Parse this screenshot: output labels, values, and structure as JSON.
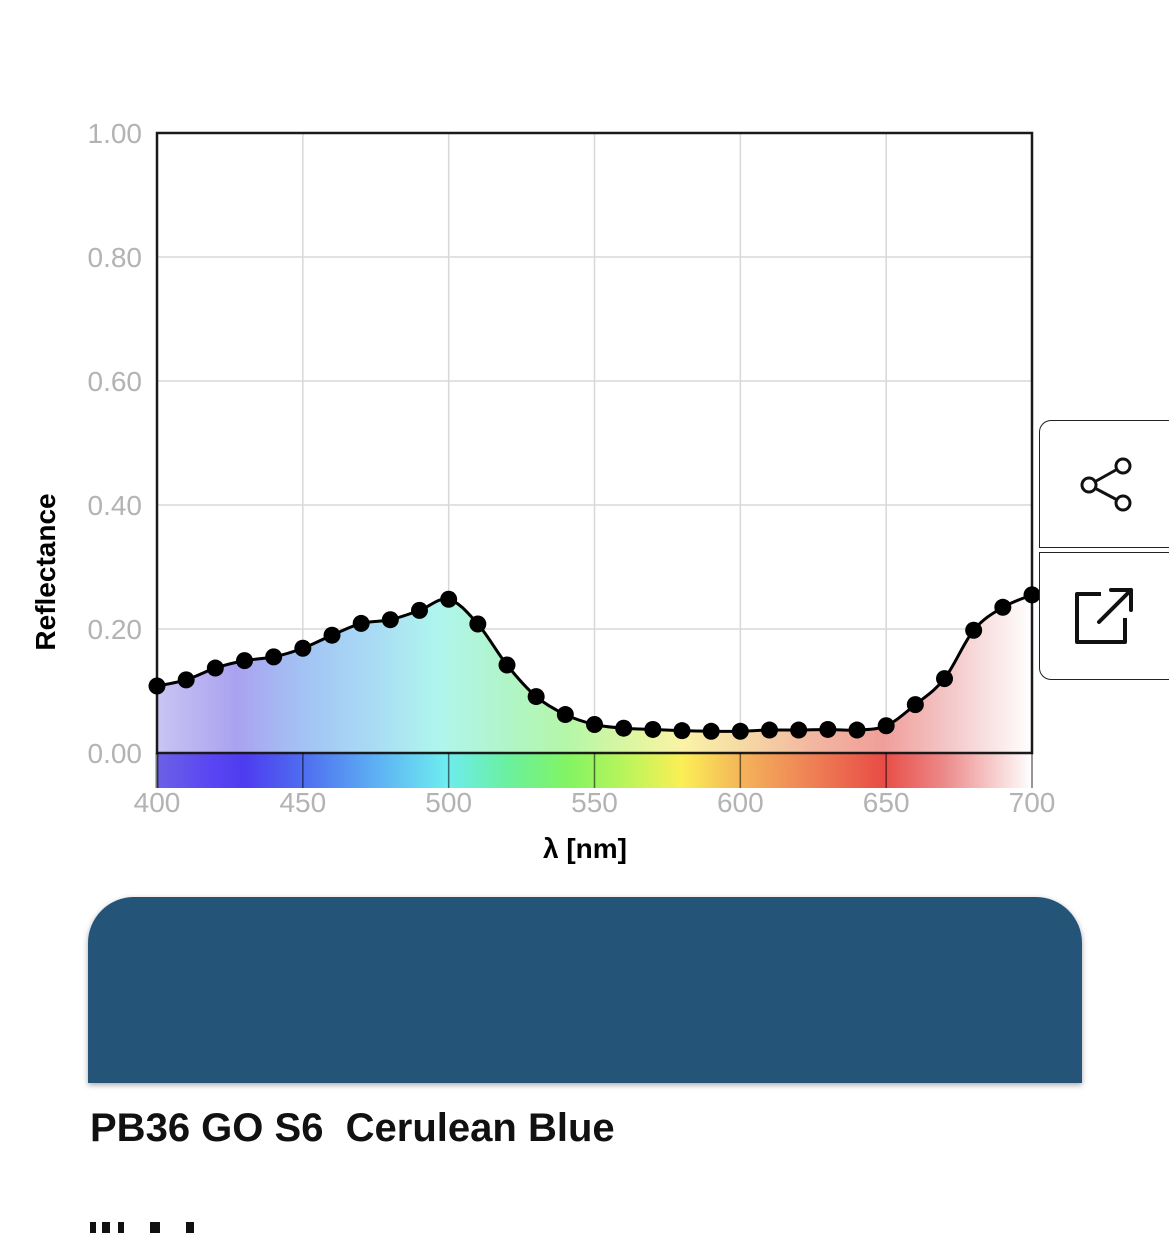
{
  "chart_data": {
    "type": "line",
    "xlabel": "λ [nm]",
    "ylabel": "Reflectance",
    "xlim": [
      400,
      700
    ],
    "ylim": [
      0,
      1
    ],
    "x_ticks": [
      "400",
      "450",
      "500",
      "550",
      "600",
      "650",
      "700"
    ],
    "y_ticks": [
      "0.00",
      "0.20",
      "0.40",
      "0.60",
      "0.80",
      "1.00"
    ],
    "grid": true,
    "markers": true,
    "series": [
      {
        "x": [
          400,
          410,
          420,
          430,
          440,
          450,
          460,
          470,
          480,
          490,
          500,
          510,
          520,
          530,
          540,
          550,
          560,
          570,
          580,
          590,
          600,
          610,
          620,
          630,
          640,
          650,
          660,
          670,
          680,
          690,
          700
        ],
        "values": [
          0.108,
          0.118,
          0.137,
          0.149,
          0.155,
          0.169,
          0.19,
          0.209,
          0.215,
          0.23,
          0.248,
          0.208,
          0.142,
          0.091,
          0.062,
          0.046,
          0.04,
          0.038,
          0.036,
          0.035,
          0.035,
          0.037,
          0.037,
          0.038,
          0.037,
          0.044,
          0.078,
          0.12,
          0.198,
          0.235,
          0.255
        ]
      }
    ]
  },
  "swatch": {
    "color": "#245579"
  },
  "pigment": {
    "name": "PB36 GO S6  Cerulean Blue"
  },
  "buttons": {
    "share_icon": "share-icon",
    "open_icon": "external-link-icon"
  }
}
